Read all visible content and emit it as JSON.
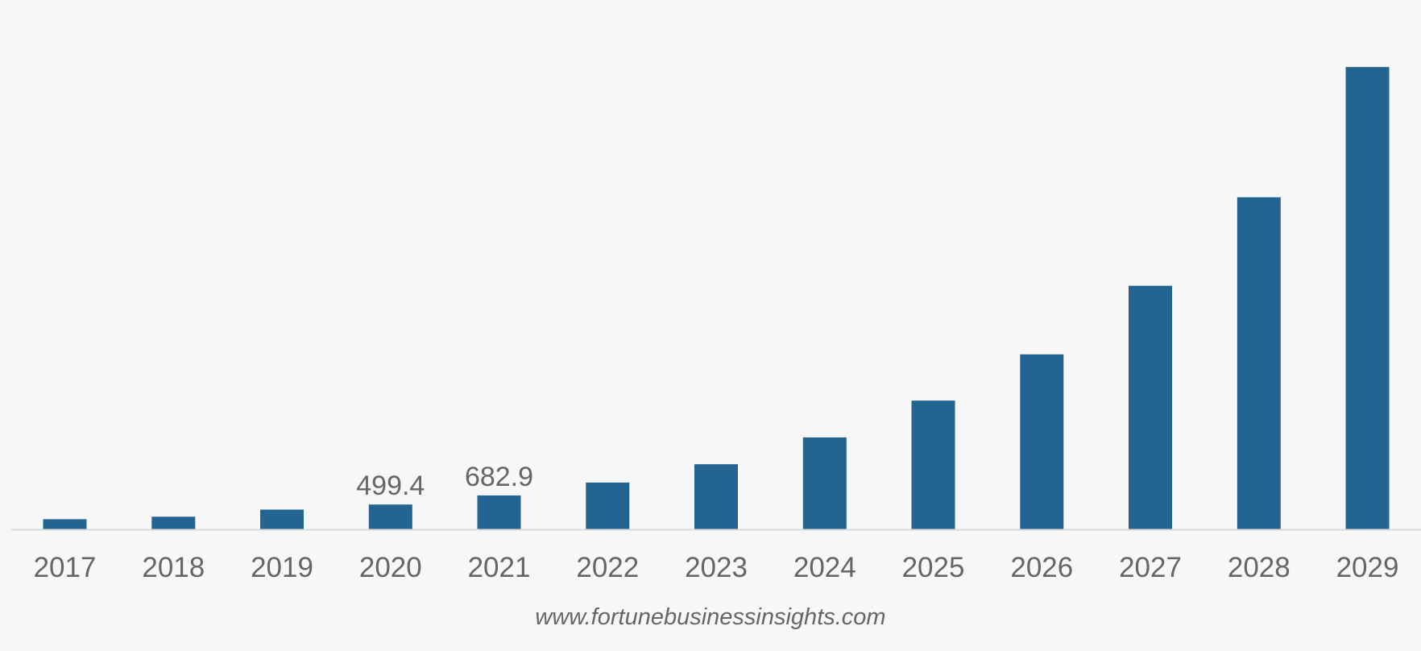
{
  "chart_data": {
    "type": "bar",
    "title": "",
    "xlabel": "",
    "ylabel": "",
    "categories": [
      "2017",
      "2018",
      "2019",
      "2020",
      "2021",
      "2022",
      "2023",
      "2024",
      "2025",
      "2026",
      "2027",
      "2028",
      "2029"
    ],
    "series": [
      {
        "values": [
          205,
          255,
          397,
          499.4,
          682.9,
          941,
          1310,
          1850,
          2590,
          3520,
          4900,
          6680,
          9300
        ]
      }
    ],
    "data_labels": [
      {
        "category": "2020",
        "text": "499.4"
      },
      {
        "category": "2021",
        "text": "682.9"
      }
    ],
    "ylim": [
      0,
      9400
    ],
    "grid": false,
    "legend": "none",
    "bar_color": "#236590",
    "axis_color": "#d9d9d9"
  },
  "source_text": "www.fortunebusinessinsights.com"
}
